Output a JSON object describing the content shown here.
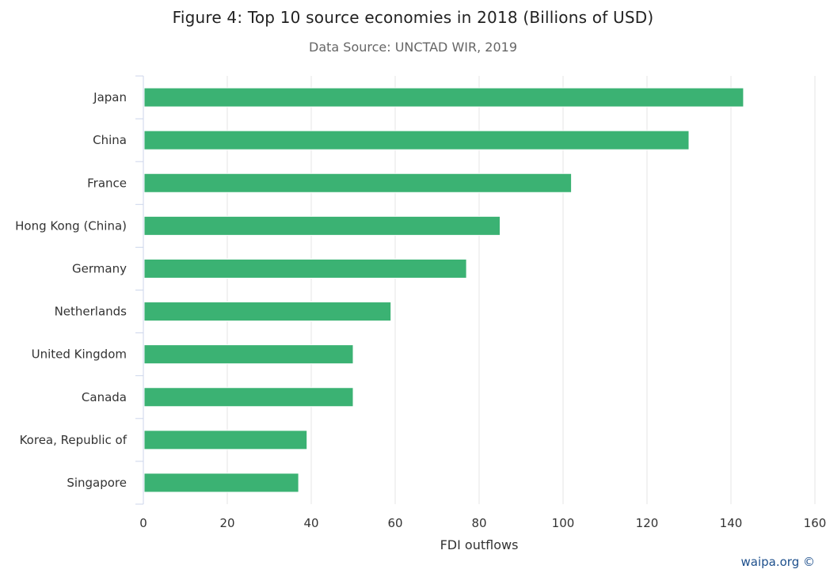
{
  "chart_data": {
    "type": "bar",
    "orientation": "horizontal",
    "title": "Figure 4: Top 10 source economies in 2018 (Billions of USD)",
    "subtitle": "Data Source: UNCTAD WIR, 2019",
    "categories": [
      "Japan",
      "China",
      "France",
      "Hong Kong (China)",
      "Germany",
      "Netherlands",
      "United Kingdom",
      "Canada",
      "Korea, Republic of",
      "Singapore"
    ],
    "series": [
      {
        "values": [
          143,
          130,
          102,
          85,
          77,
          59,
          50,
          50,
          39,
          37
        ],
        "color": "#3bb273"
      }
    ],
    "xlabel": "FDI outflows",
    "ylabel": "",
    "xlim": [
      0,
      160
    ],
    "xticks": [
      0,
      20,
      40,
      60,
      80,
      100,
      120,
      140,
      160
    ],
    "grid": true,
    "legend": "none"
  },
  "credit": "waipa.org ©",
  "colors": {
    "bar": "#3bb273",
    "grid": "#e6e6e6",
    "axis": "#ccd6eb",
    "text": "#333333",
    "credit": "#1d4f8c"
  }
}
